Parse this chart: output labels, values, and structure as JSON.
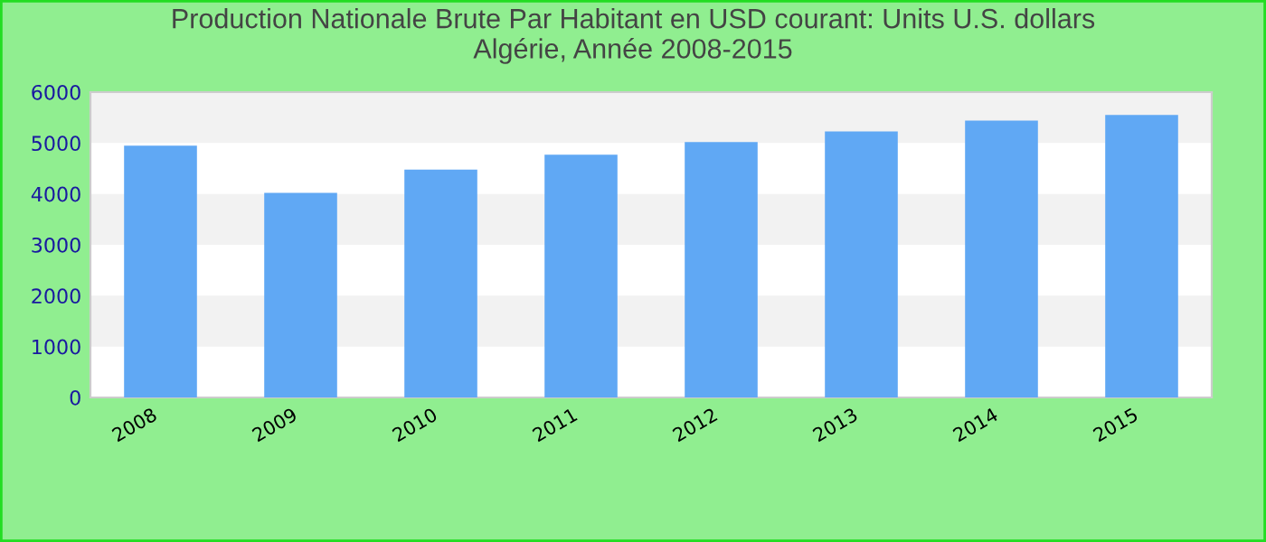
{
  "chart_data": {
    "type": "bar",
    "title": "Production Nationale Brute Par Habitant en USD courant: Units U.S. dollars\nAlgérie, Année 2008-2015",
    "categories": [
      "2008",
      "2009",
      "2010",
      "2011",
      "2012",
      "2013",
      "2014",
      "2015"
    ],
    "values": [
      4950,
      4020,
      4480,
      4770,
      5020,
      5230,
      5440,
      5550
    ],
    "color": "#60a8f4",
    "ylim": [
      0,
      6000
    ],
    "yticks": [
      0,
      1000,
      2000,
      3000,
      4000,
      5000,
      6000
    ],
    "bands": [
      {
        "axis": "y",
        "from": 1000,
        "to": 2000,
        "color": "#f2f2f2"
      },
      {
        "axis": "y",
        "from": 3000,
        "to": 4000,
        "color": "#f2f2f2"
      },
      {
        "axis": "y",
        "from": 5000,
        "to": 6000,
        "color": "#f2f2f2"
      }
    ]
  }
}
